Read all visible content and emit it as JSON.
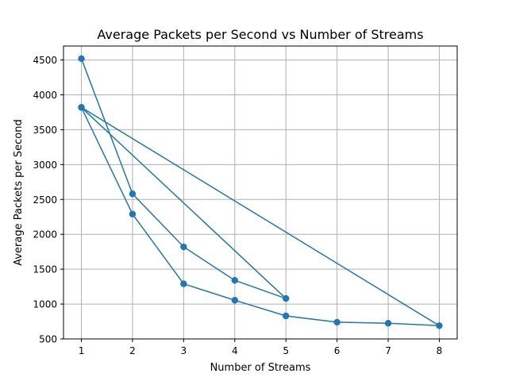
{
  "chart_data": {
    "type": "line",
    "title": "Average Packets per Second vs Number of Streams",
    "xlabel": "Number of Streams",
    "ylabel": "Average Packets per Second",
    "xlim": [
      0.65,
      8.35
    ],
    "ylim": [
      500,
      4700
    ],
    "xticks": [
      1,
      2,
      3,
      4,
      5,
      6,
      7,
      8
    ],
    "yticks": [
      500,
      1000,
      1500,
      2000,
      2500,
      3000,
      3500,
      4000,
      4500
    ],
    "grid": true,
    "legend": "none",
    "colors": {
      "series": "#1f77b4",
      "grid": "#b0b0b0",
      "axes": "#000000"
    },
    "series": [
      {
        "x": [
          1,
          2,
          3,
          4,
          5,
          1,
          2,
          3,
          4,
          5,
          6,
          7,
          8,
          1
        ],
        "values": [
          4520,
          2580,
          1820,
          1340,
          1080,
          3820,
          2290,
          1290,
          1055,
          830,
          740,
          725,
          690,
          3820
        ]
      }
    ]
  }
}
